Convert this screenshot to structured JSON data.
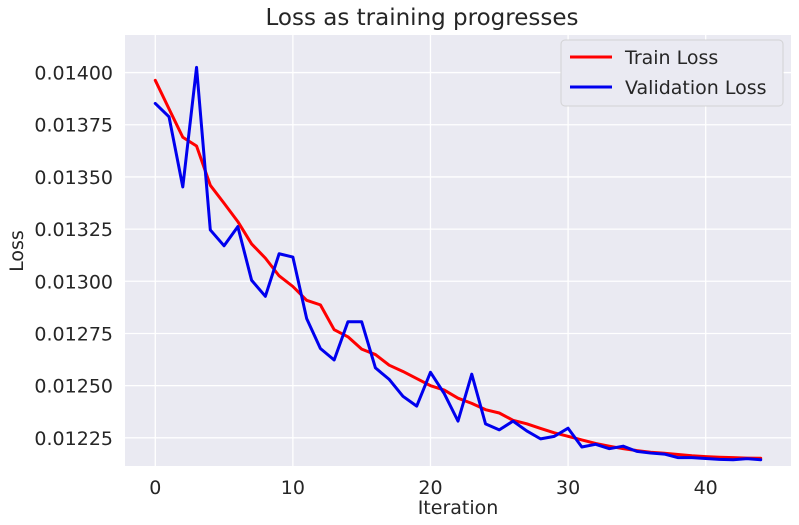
{
  "chart_data": {
    "type": "line",
    "title": "Loss as training progresses",
    "xlabel": "Iteration",
    "ylabel": "Loss",
    "xlim": [
      -2.2,
      46.2
    ],
    "ylim": [
      0.012115,
      0.01418
    ],
    "xticks": [
      0,
      10,
      20,
      30,
      40
    ],
    "yticks": [
      0.01225,
      0.0125,
      0.01275,
      0.013,
      0.01325,
      0.0135,
      0.01375,
      0.014
    ],
    "ytick_labels": [
      "0.01225",
      "0.01250",
      "0.01275",
      "0.01300",
      "0.01325",
      "0.01350",
      "0.01375",
      "0.01400"
    ],
    "grid": true,
    "legend_position": "top-right",
    "x": [
      0,
      1,
      2,
      3,
      4,
      5,
      6,
      7,
      8,
      9,
      10,
      11,
      12,
      13,
      14,
      15,
      16,
      17,
      18,
      19,
      20,
      21,
      22,
      23,
      24,
      25,
      26,
      27,
      28,
      29,
      30,
      31,
      32,
      33,
      34,
      35,
      36,
      37,
      38,
      39,
      40,
      41,
      42,
      43,
      44
    ],
    "series": [
      {
        "name": "Train Loss",
        "color": "#ff0000",
        "values": [
          0.013963,
          0.013826,
          0.01369,
          0.013648,
          0.01346,
          0.013374,
          0.013286,
          0.013179,
          0.013111,
          0.013026,
          0.012975,
          0.012909,
          0.012887,
          0.012768,
          0.012734,
          0.012675,
          0.012649,
          0.012598,
          0.012568,
          0.012534,
          0.0125,
          0.012479,
          0.01244,
          0.012415,
          0.012385,
          0.012369,
          0.012334,
          0.012317,
          0.012295,
          0.012274,
          0.012257,
          0.01224,
          0.012223,
          0.01221,
          0.012198,
          0.012189,
          0.012181,
          0.012176,
          0.01217,
          0.012164,
          0.01216,
          0.012157,
          0.012155,
          0.012153,
          0.012152
        ]
      },
      {
        "name": "Validation Loss",
        "color": "#0000ee",
        "values": [
          0.013852,
          0.013788,
          0.013452,
          0.014025,
          0.013246,
          0.01317,
          0.013262,
          0.013005,
          0.012928,
          0.013132,
          0.013116,
          0.012822,
          0.012678,
          0.012623,
          0.012806,
          0.012806,
          0.012585,
          0.01253,
          0.012449,
          0.012402,
          0.012564,
          0.012462,
          0.01233,
          0.012555,
          0.012317,
          0.012288,
          0.01233,
          0.012283,
          0.012245,
          0.012257,
          0.012296,
          0.012206,
          0.012219,
          0.012198,
          0.01221,
          0.012185,
          0.012177,
          0.012172,
          0.012155,
          0.012155,
          0.012151,
          0.012147,
          0.012145,
          0.01215,
          0.012145
        ]
      }
    ]
  }
}
